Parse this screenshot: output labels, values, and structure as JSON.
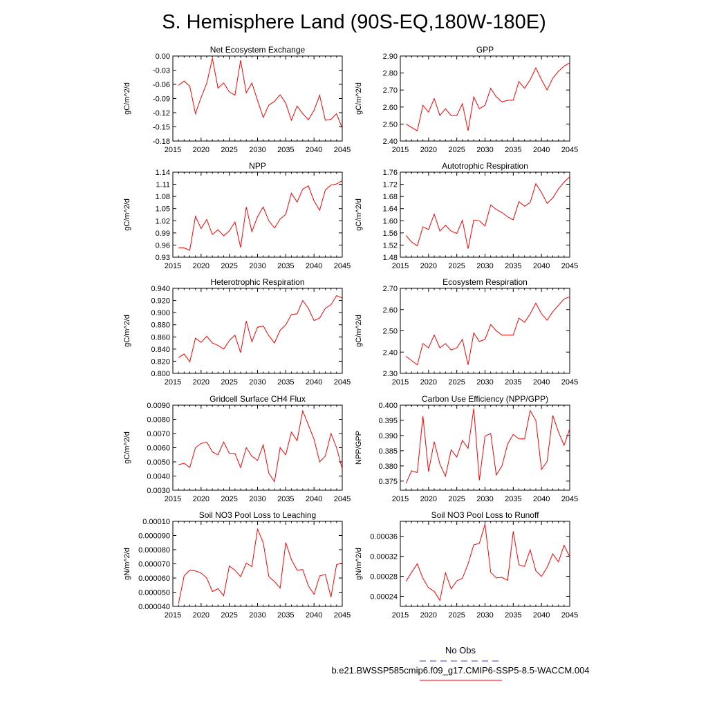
{
  "figure": {
    "title": "S. Hemisphere Land (90S-EQ,180W-180E)",
    "line_color": "#ff0000",
    "obs_color": "#3b3bcc"
  },
  "legend": {
    "obs_label": "No Obs",
    "model_label": "b.e21.BWSSP585cmip6.f09_g17.CMIP6-SSP5-8.5-WACCM.004"
  },
  "chart_data": [
    {
      "type": "line",
      "title": "Net Ecosystem Exchange",
      "ylabel": "gC/m^2/d",
      "xlim": [
        2015,
        2045
      ],
      "ylim": [
        -0.18,
        0.0
      ],
      "xticks": [
        2015,
        2020,
        2025,
        2030,
        2035,
        2040,
        2045
      ],
      "yticks": [
        "0.00",
        "-0.03",
        "-0.06",
        "-0.09",
        "-0.12",
        "-0.15",
        "-0.18"
      ],
      "x": [
        2016,
        2017,
        2018,
        2019,
        2020,
        2021,
        2022,
        2023,
        2024,
        2025,
        2026,
        2027,
        2028,
        2029,
        2030,
        2031,
        2032,
        2033,
        2034,
        2035,
        2036,
        2037,
        2038,
        2039,
        2040,
        2041,
        2042,
        2043,
        2044,
        2045
      ],
      "values": [
        -0.062,
        -0.053,
        -0.064,
        -0.122,
        -0.088,
        -0.058,
        -0.005,
        -0.068,
        -0.057,
        -0.076,
        -0.083,
        -0.009,
        -0.078,
        -0.057,
        -0.094,
        -0.13,
        -0.104,
        -0.096,
        -0.082,
        -0.1,
        -0.136,
        -0.106,
        -0.122,
        -0.135,
        -0.115,
        -0.083,
        -0.136,
        -0.134,
        -0.122,
        -0.153
      ]
    },
    {
      "type": "line",
      "title": "GPP",
      "ylabel": "gC/m^2/d",
      "xlim": [
        2015,
        2045
      ],
      "ylim": [
        2.4,
        2.9
      ],
      "xticks": [
        2015,
        2020,
        2025,
        2030,
        2035,
        2040,
        2045
      ],
      "yticks": [
        "2.90",
        "2.80",
        "2.70",
        "2.60",
        "2.50",
        "2.40"
      ],
      "x": [
        2016,
        2017,
        2018,
        2019,
        2020,
        2021,
        2022,
        2023,
        2024,
        2025,
        2026,
        2027,
        2028,
        2029,
        2030,
        2031,
        2032,
        2033,
        2034,
        2035,
        2036,
        2037,
        2038,
        2039,
        2040,
        2041,
        2042,
        2043,
        2044,
        2045
      ],
      "values": [
        2.5,
        2.48,
        2.46,
        2.61,
        2.57,
        2.65,
        2.55,
        2.59,
        2.55,
        2.55,
        2.62,
        2.46,
        2.66,
        2.59,
        2.61,
        2.71,
        2.66,
        2.63,
        2.64,
        2.64,
        2.75,
        2.71,
        2.76,
        2.83,
        2.76,
        2.7,
        2.77,
        2.81,
        2.84,
        2.86
      ]
    },
    {
      "type": "line",
      "title": "NPP",
      "ylabel": "gC/m^2/d",
      "xlim": [
        2015,
        2045
      ],
      "ylim": [
        0.93,
        1.14
      ],
      "xticks": [
        2015,
        2020,
        2025,
        2030,
        2035,
        2040,
        2045
      ],
      "yticks": [
        "1.14",
        "1.11",
        "1.08",
        "1.05",
        "1.02",
        "0.99",
        "0.96",
        "0.93"
      ],
      "x": [
        2016,
        2017,
        2018,
        2019,
        2020,
        2021,
        2022,
        2023,
        2024,
        2025,
        2026,
        2027,
        2028,
        2029,
        2030,
        2031,
        2032,
        2033,
        2034,
        2035,
        2036,
        2037,
        2038,
        2039,
        2040,
        2041,
        2042,
        2043,
        2044,
        2045
      ],
      "values": [
        0.953,
        0.953,
        0.947,
        1.031,
        1.001,
        1.023,
        0.986,
        0.998,
        0.983,
        0.995,
        1.017,
        0.954,
        1.054,
        0.993,
        1.03,
        1.054,
        1.02,
        1.002,
        1.024,
        1.036,
        1.088,
        1.066,
        1.098,
        1.106,
        1.069,
        1.046,
        1.096,
        1.108,
        1.111,
        1.119
      ]
    },
    {
      "type": "line",
      "title": "Autotrophic Respiration",
      "ylabel": "gC/m^2/d",
      "xlim": [
        2015,
        2045
      ],
      "ylim": [
        1.48,
        1.76
      ],
      "xticks": [
        2015,
        2020,
        2025,
        2030,
        2035,
        2040,
        2045
      ],
      "yticks": [
        "1.76",
        "1.72",
        "1.68",
        "1.64",
        "1.60",
        "1.56",
        "1.52",
        "1.48"
      ],
      "x": [
        2016,
        2017,
        2018,
        2019,
        2020,
        2021,
        2022,
        2023,
        2024,
        2025,
        2026,
        2027,
        2028,
        2029,
        2030,
        2031,
        2032,
        2033,
        2034,
        2035,
        2036,
        2037,
        2038,
        2039,
        2040,
        2041,
        2042,
        2043,
        2044,
        2045
      ],
      "values": [
        1.552,
        1.53,
        1.517,
        1.58,
        1.571,
        1.622,
        1.566,
        1.585,
        1.566,
        1.558,
        1.602,
        1.508,
        1.602,
        1.6,
        1.583,
        1.652,
        1.637,
        1.627,
        1.613,
        1.603,
        1.663,
        1.648,
        1.66,
        1.722,
        1.693,
        1.657,
        1.675,
        1.705,
        1.727,
        1.745
      ]
    },
    {
      "type": "line",
      "title": "Heterotrophic Respiration",
      "ylabel": "gC/m^2/d",
      "xlim": [
        2015,
        2045
      ],
      "ylim": [
        0.8,
        0.94
      ],
      "xticks": [
        2015,
        2020,
        2025,
        2030,
        2035,
        2040,
        2045
      ],
      "yticks": [
        "0.940",
        "0.920",
        "0.900",
        "0.880",
        "0.860",
        "0.840",
        "0.820",
        "0.800"
      ],
      "x": [
        2016,
        2017,
        2018,
        2019,
        2020,
        2021,
        2022,
        2023,
        2024,
        2025,
        2026,
        2027,
        2028,
        2029,
        2030,
        2031,
        2032,
        2033,
        2034,
        2035,
        2036,
        2037,
        2038,
        2039,
        2040,
        2041,
        2042,
        2043,
        2044,
        2045
      ],
      "values": [
        0.826,
        0.832,
        0.819,
        0.858,
        0.851,
        0.861,
        0.85,
        0.846,
        0.84,
        0.854,
        0.863,
        0.834,
        0.886,
        0.852,
        0.876,
        0.878,
        0.862,
        0.85,
        0.871,
        0.88,
        0.897,
        0.898,
        0.92,
        0.907,
        0.887,
        0.891,
        0.907,
        0.913,
        0.928,
        0.924
      ]
    },
    {
      "type": "line",
      "title": "Ecosystem Respiration",
      "ylabel": "gC/m^2/d",
      "xlim": [
        2015,
        2045
      ],
      "ylim": [
        2.3,
        2.7
      ],
      "xticks": [
        2015,
        2020,
        2025,
        2030,
        2035,
        2040,
        2045
      ],
      "yticks": [
        "2.70",
        "2.60",
        "2.50",
        "2.40",
        "2.30"
      ],
      "x": [
        2016,
        2017,
        2018,
        2019,
        2020,
        2021,
        2022,
        2023,
        2024,
        2025,
        2026,
        2027,
        2028,
        2029,
        2030,
        2031,
        2032,
        2033,
        2034,
        2035,
        2036,
        2037,
        2038,
        2039,
        2040,
        2041,
        2042,
        2043,
        2044,
        2045
      ],
      "values": [
        2.38,
        2.36,
        2.34,
        2.44,
        2.42,
        2.48,
        2.42,
        2.44,
        2.41,
        2.42,
        2.46,
        2.34,
        2.49,
        2.45,
        2.46,
        2.53,
        2.5,
        2.48,
        2.48,
        2.48,
        2.56,
        2.54,
        2.58,
        2.63,
        2.58,
        2.55,
        2.59,
        2.62,
        2.65,
        2.66
      ]
    },
    {
      "type": "line",
      "title": "Gridcell Surface CH4 Flux",
      "ylabel": "gC/m^2/d",
      "xlim": [
        2015,
        2045
      ],
      "ylim": [
        0.003,
        0.009
      ],
      "xticks": [
        2015,
        2020,
        2025,
        2030,
        2035,
        2040,
        2045
      ],
      "yticks": [
        "0.0090",
        "0.0080",
        "0.0070",
        "0.0060",
        "0.0050",
        "0.0040",
        "0.0030"
      ],
      "x": [
        2016,
        2017,
        2018,
        2019,
        2020,
        2021,
        2022,
        2023,
        2024,
        2025,
        2026,
        2027,
        2028,
        2029,
        2030,
        2031,
        2032,
        2033,
        2034,
        2035,
        2036,
        2037,
        2038,
        2039,
        2040,
        2041,
        2042,
        2043,
        2044,
        2045
      ],
      "values": [
        0.0048,
        0.0049,
        0.0046,
        0.006,
        0.0063,
        0.0064,
        0.0057,
        0.0055,
        0.0064,
        0.0056,
        0.0056,
        0.0046,
        0.006,
        0.0054,
        0.0051,
        0.0062,
        0.0042,
        0.0036,
        0.006,
        0.0055,
        0.0071,
        0.0065,
        0.0086,
        0.0076,
        0.0066,
        0.005,
        0.0054,
        0.007,
        0.006,
        0.0045
      ]
    },
    {
      "type": "line",
      "title": "Carbon Use Efficiency (NPP/GPP)",
      "ylabel": "NPP/GPP",
      "xlim": [
        2015,
        2045
      ],
      "ylim": [
        0.372,
        0.4
      ],
      "xticks": [
        2015,
        2020,
        2025,
        2030,
        2035,
        2040,
        2045
      ],
      "yticks": [
        "0.400",
        "0.395",
        "0.390",
        "0.385",
        "0.380",
        "0.375"
      ],
      "x": [
        2016,
        2017,
        2018,
        2019,
        2020,
        2021,
        2022,
        2023,
        2024,
        2025,
        2026,
        2027,
        2028,
        2029,
        2030,
        2031,
        2032,
        2033,
        2034,
        2035,
        2036,
        2037,
        2038,
        2039,
        2040,
        2041,
        2042,
        2043,
        2044,
        2045
      ],
      "values": [
        0.3742,
        0.3784,
        0.3778,
        0.3964,
        0.3781,
        0.388,
        0.3806,
        0.3766,
        0.3853,
        0.3829,
        0.3884,
        0.3858,
        0.3989,
        0.3753,
        0.3898,
        0.3907,
        0.377,
        0.38,
        0.3872,
        0.3904,
        0.3889,
        0.3889,
        0.3982,
        0.395,
        0.3788,
        0.3815,
        0.3966,
        0.3912,
        0.3868,
        0.3922
      ]
    },
    {
      "type": "line",
      "title": "Soil NO3 Pool Loss to Leaching",
      "ylabel": "gN/m^2/d",
      "xlim": [
        2015,
        2045
      ],
      "ylim": [
        4e-05,
        0.0001
      ],
      "xticks": [
        2015,
        2020,
        2025,
        2030,
        2035,
        2040,
        2045
      ],
      "yticks": [
        "0.00010",
        "0.000090",
        "0.000080",
        "0.000070",
        "0.000060",
        "0.000050",
        "0.000040"
      ],
      "x": [
        2016,
        2017,
        2018,
        2019,
        2020,
        2021,
        2022,
        2023,
        2024,
        2025,
        2026,
        2027,
        2028,
        2029,
        2030,
        2031,
        2032,
        2033,
        2034,
        2035,
        2036,
        2037,
        2038,
        2039,
        2040,
        2041,
        2042,
        2043,
        2044,
        2045
      ],
      "values": [
        4.2e-05,
        6.15e-05,
        6.55e-05,
        6.5e-05,
        6.35e-05,
        6e-05,
        5.05e-05,
        5.25e-05,
        4.75e-05,
        6.85e-05,
        6.55e-05,
        6.1e-05,
        7.05e-05,
        6.8e-05,
        9.45e-05,
        8.5e-05,
        6.1e-05,
        5.75e-05,
        5.3e-05,
        8.5e-05,
        7.3e-05,
        6.55e-05,
        6.6e-05,
        5.45e-05,
        4.85e-05,
        6.15e-05,
        6.25e-05,
        4.65e-05,
        6.95e-05,
        7.05e-05
      ]
    },
    {
      "type": "line",
      "title": "Soil NO3 Pool Loss to Runoff",
      "ylabel": "gN/m^2/d",
      "xlim": [
        2015,
        2045
      ],
      "ylim": [
        0.00022,
        0.00039
      ],
      "xticks": [
        2015,
        2020,
        2025,
        2030,
        2035,
        2040,
        2045
      ],
      "yticks": [
        "0.00036",
        "0.00032",
        "0.00028",
        "0.00024"
      ],
      "x": [
        2016,
        2017,
        2018,
        2019,
        2020,
        2021,
        2022,
        2023,
        2024,
        2025,
        2026,
        2027,
        2028,
        2029,
        2030,
        2031,
        2032,
        2033,
        2034,
        2035,
        2036,
        2037,
        2038,
        2039,
        2040,
        2041,
        2042,
        2043,
        2044,
        2045
      ],
      "values": [
        0.00027,
        0.000288,
        0.000305,
        0.000276,
        0.000257,
        0.00025,
        0.000232,
        0.000287,
        0.000255,
        0.000271,
        0.000276,
        0.000305,
        0.000343,
        0.000346,
        0.000384,
        0.000288,
        0.000277,
        0.000278,
        0.000272,
        0.00037,
        0.000303,
        0.0003,
        0.000333,
        0.000291,
        0.00028,
        0.000298,
        0.000325,
        0.000309,
        0.000342,
        0.000319
      ]
    }
  ]
}
